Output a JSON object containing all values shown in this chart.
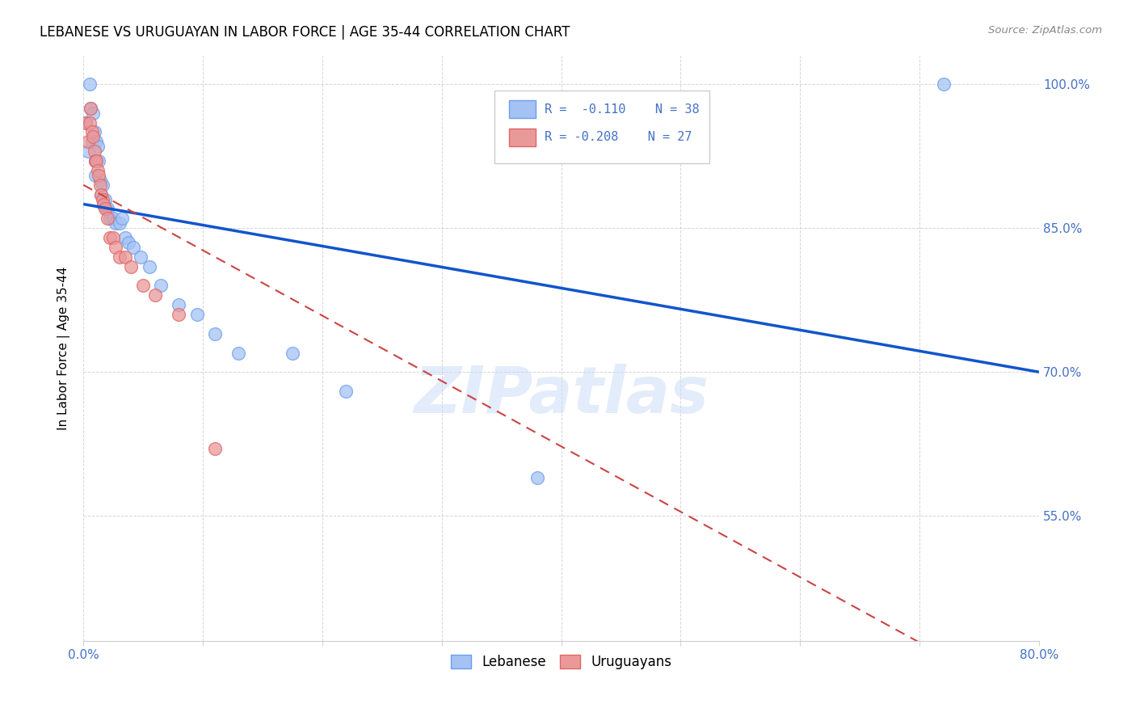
{
  "title": "LEBANESE VS URUGUAYAN IN LABOR FORCE | AGE 35-44 CORRELATION CHART",
  "source_text": "Source: ZipAtlas.com",
  "ylabel": "In Labor Force | Age 35-44",
  "xlim": [
    0.0,
    0.8
  ],
  "ylim": [
    0.42,
    1.03
  ],
  "xtick_positions": [
    0.0,
    0.1,
    0.2,
    0.3,
    0.4,
    0.5,
    0.6,
    0.7,
    0.8
  ],
  "xticklabels": [
    "0.0%",
    "",
    "",
    "",
    "",
    "",
    "",
    "",
    "80.0%"
  ],
  "ytick_positions": [
    0.55,
    0.7,
    0.85,
    1.0
  ],
  "ytick_labels": [
    "55.0%",
    "70.0%",
    "85.0%",
    "100.0%"
  ],
  "blue_color": "#a4c2f4",
  "pink_color": "#ea9999",
  "blue_edge_color": "#6d9eeb",
  "pink_edge_color": "#e06666",
  "blue_line_color": "#1155cc",
  "pink_line_color": "#cc4444",
  "watermark": "ZIPatlas",
  "legend_r1": "R =  -0.110",
  "legend_n1": "N = 38",
  "legend_r2": "R = -0.208",
  "legend_n2": "N = 27",
  "lebanese_x": [
    0.002,
    0.004,
    0.005,
    0.006,
    0.007,
    0.008,
    0.009,
    0.01,
    0.01,
    0.011,
    0.012,
    0.013,
    0.014,
    0.015,
    0.016,
    0.017,
    0.018,
    0.019,
    0.02,
    0.022,
    0.025,
    0.027,
    0.03,
    0.032,
    0.035,
    0.038,
    0.042,
    0.048,
    0.055,
    0.065,
    0.08,
    0.095,
    0.11,
    0.13,
    0.175,
    0.22,
    0.38,
    0.72
  ],
  "lebanese_y": [
    0.96,
    0.93,
    1.0,
    0.975,
    0.94,
    0.97,
    0.95,
    0.92,
    0.905,
    0.94,
    0.935,
    0.92,
    0.9,
    0.885,
    0.895,
    0.875,
    0.88,
    0.87,
    0.87,
    0.86,
    0.86,
    0.855,
    0.855,
    0.86,
    0.84,
    0.835,
    0.83,
    0.82,
    0.81,
    0.79,
    0.77,
    0.76,
    0.74,
    0.72,
    0.72,
    0.68,
    0.59,
    1.0
  ],
  "uruguayan_x": [
    0.002,
    0.004,
    0.005,
    0.006,
    0.007,
    0.008,
    0.009,
    0.01,
    0.011,
    0.012,
    0.013,
    0.014,
    0.015,
    0.016,
    0.017,
    0.018,
    0.02,
    0.022,
    0.025,
    0.027,
    0.03,
    0.035,
    0.04,
    0.05,
    0.06,
    0.08,
    0.11
  ],
  "uruguayan_y": [
    0.96,
    0.94,
    0.96,
    0.975,
    0.95,
    0.945,
    0.93,
    0.92,
    0.92,
    0.91,
    0.905,
    0.895,
    0.885,
    0.88,
    0.875,
    0.87,
    0.86,
    0.84,
    0.84,
    0.83,
    0.82,
    0.82,
    0.81,
    0.79,
    0.78,
    0.76,
    0.62
  ]
}
